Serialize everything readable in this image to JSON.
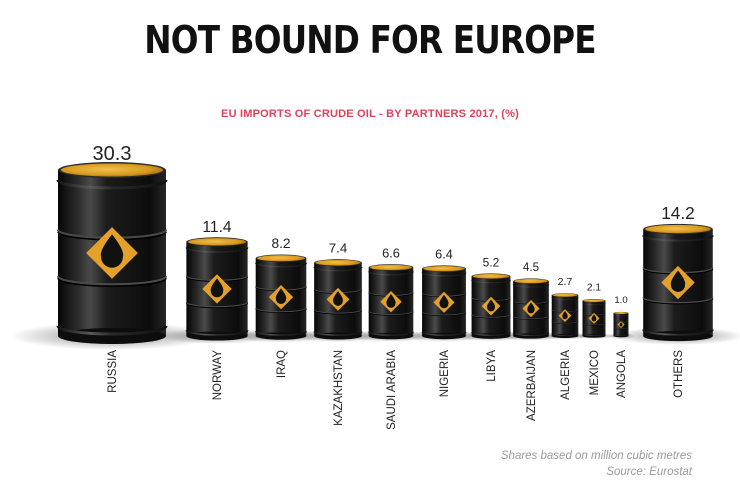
{
  "header": {
    "title": "NOT BOUND FOR EUROPE"
  },
  "chart_data": {
    "type": "bar",
    "title": "EU IMPORTS OF CRUDE OIL - BY PARTNERS 2017, (%)",
    "xlabel": "",
    "ylabel": "",
    "categories": [
      "RUSSIA",
      "NORWAY",
      "IRAQ",
      "KAZAKHSTAN",
      "SAUDI ARABIA",
      "NIGERIA",
      "LIBYA",
      "AZERBAIJAN",
      "ALGERIA",
      "MEXICO",
      "ANGOLA",
      "OTHERS"
    ],
    "values": [
      30.3,
      11.4,
      8.2,
      7.4,
      6.6,
      6.4,
      5.2,
      4.5,
      2.7,
      2.1,
      1.0,
      14.2
    ],
    "value_labels": [
      "30.3",
      "11.4",
      "8.2",
      "7.4",
      "6.6",
      "6.4",
      "5.2",
      "4.5",
      "2.7",
      "2.1",
      "1.0",
      "14.2"
    ],
    "unit": "%",
    "mark": "oil-barrel"
  },
  "footer": {
    "note": "Shares based on million cubic metres",
    "source": "Source: Eurostat"
  },
  "colors": {
    "title": "#111111",
    "subtitle": "#e0405a",
    "barrel_body": "#1a1a1a",
    "barrel_lid": "#d99a1e",
    "drop_badge": "#e3a02a",
    "footer_text": "#9a9a9a"
  }
}
